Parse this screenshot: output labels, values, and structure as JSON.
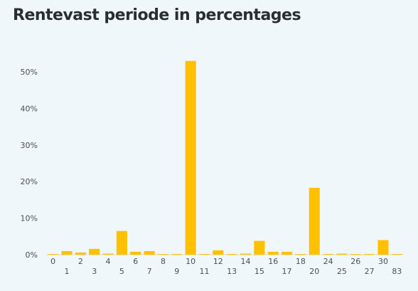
{
  "title": "Rentevast periode in percentages",
  "colors": {
    "bar": "#ffc000",
    "background": "#f0f7fa",
    "text": "#2a2d33",
    "axis": "#4a4f57"
  },
  "chart_data": {
    "type": "bar",
    "title": "Rentevast periode in percentages",
    "xlabel": "",
    "ylabel": "",
    "ylim": [
      0,
      55
    ],
    "yticks": [
      0,
      10,
      20,
      30,
      40,
      50
    ],
    "ytick_labels": [
      "0%",
      "10%",
      "20%",
      "30%",
      "40%",
      "50%"
    ],
    "grid": false,
    "legend": "none",
    "categories": [
      "0",
      "1",
      "2",
      "3",
      "4",
      "5",
      "6",
      "7",
      "8",
      "9",
      "10",
      "11",
      "12",
      "13",
      "14",
      "15",
      "16",
      "17",
      "18",
      "20",
      "24",
      "25",
      "26",
      "27",
      "30",
      "83"
    ],
    "values": [
      0.1,
      1.0,
      0.6,
      1.6,
      0.3,
      6.5,
      0.8,
      1.0,
      0.2,
      0.2,
      53.0,
      0.2,
      1.2,
      0.2,
      0.3,
      3.8,
      0.8,
      0.8,
      0.2,
      18.3,
      0.1,
      0.3,
      0.2,
      0.2,
      4.0,
      0.1
    ]
  }
}
